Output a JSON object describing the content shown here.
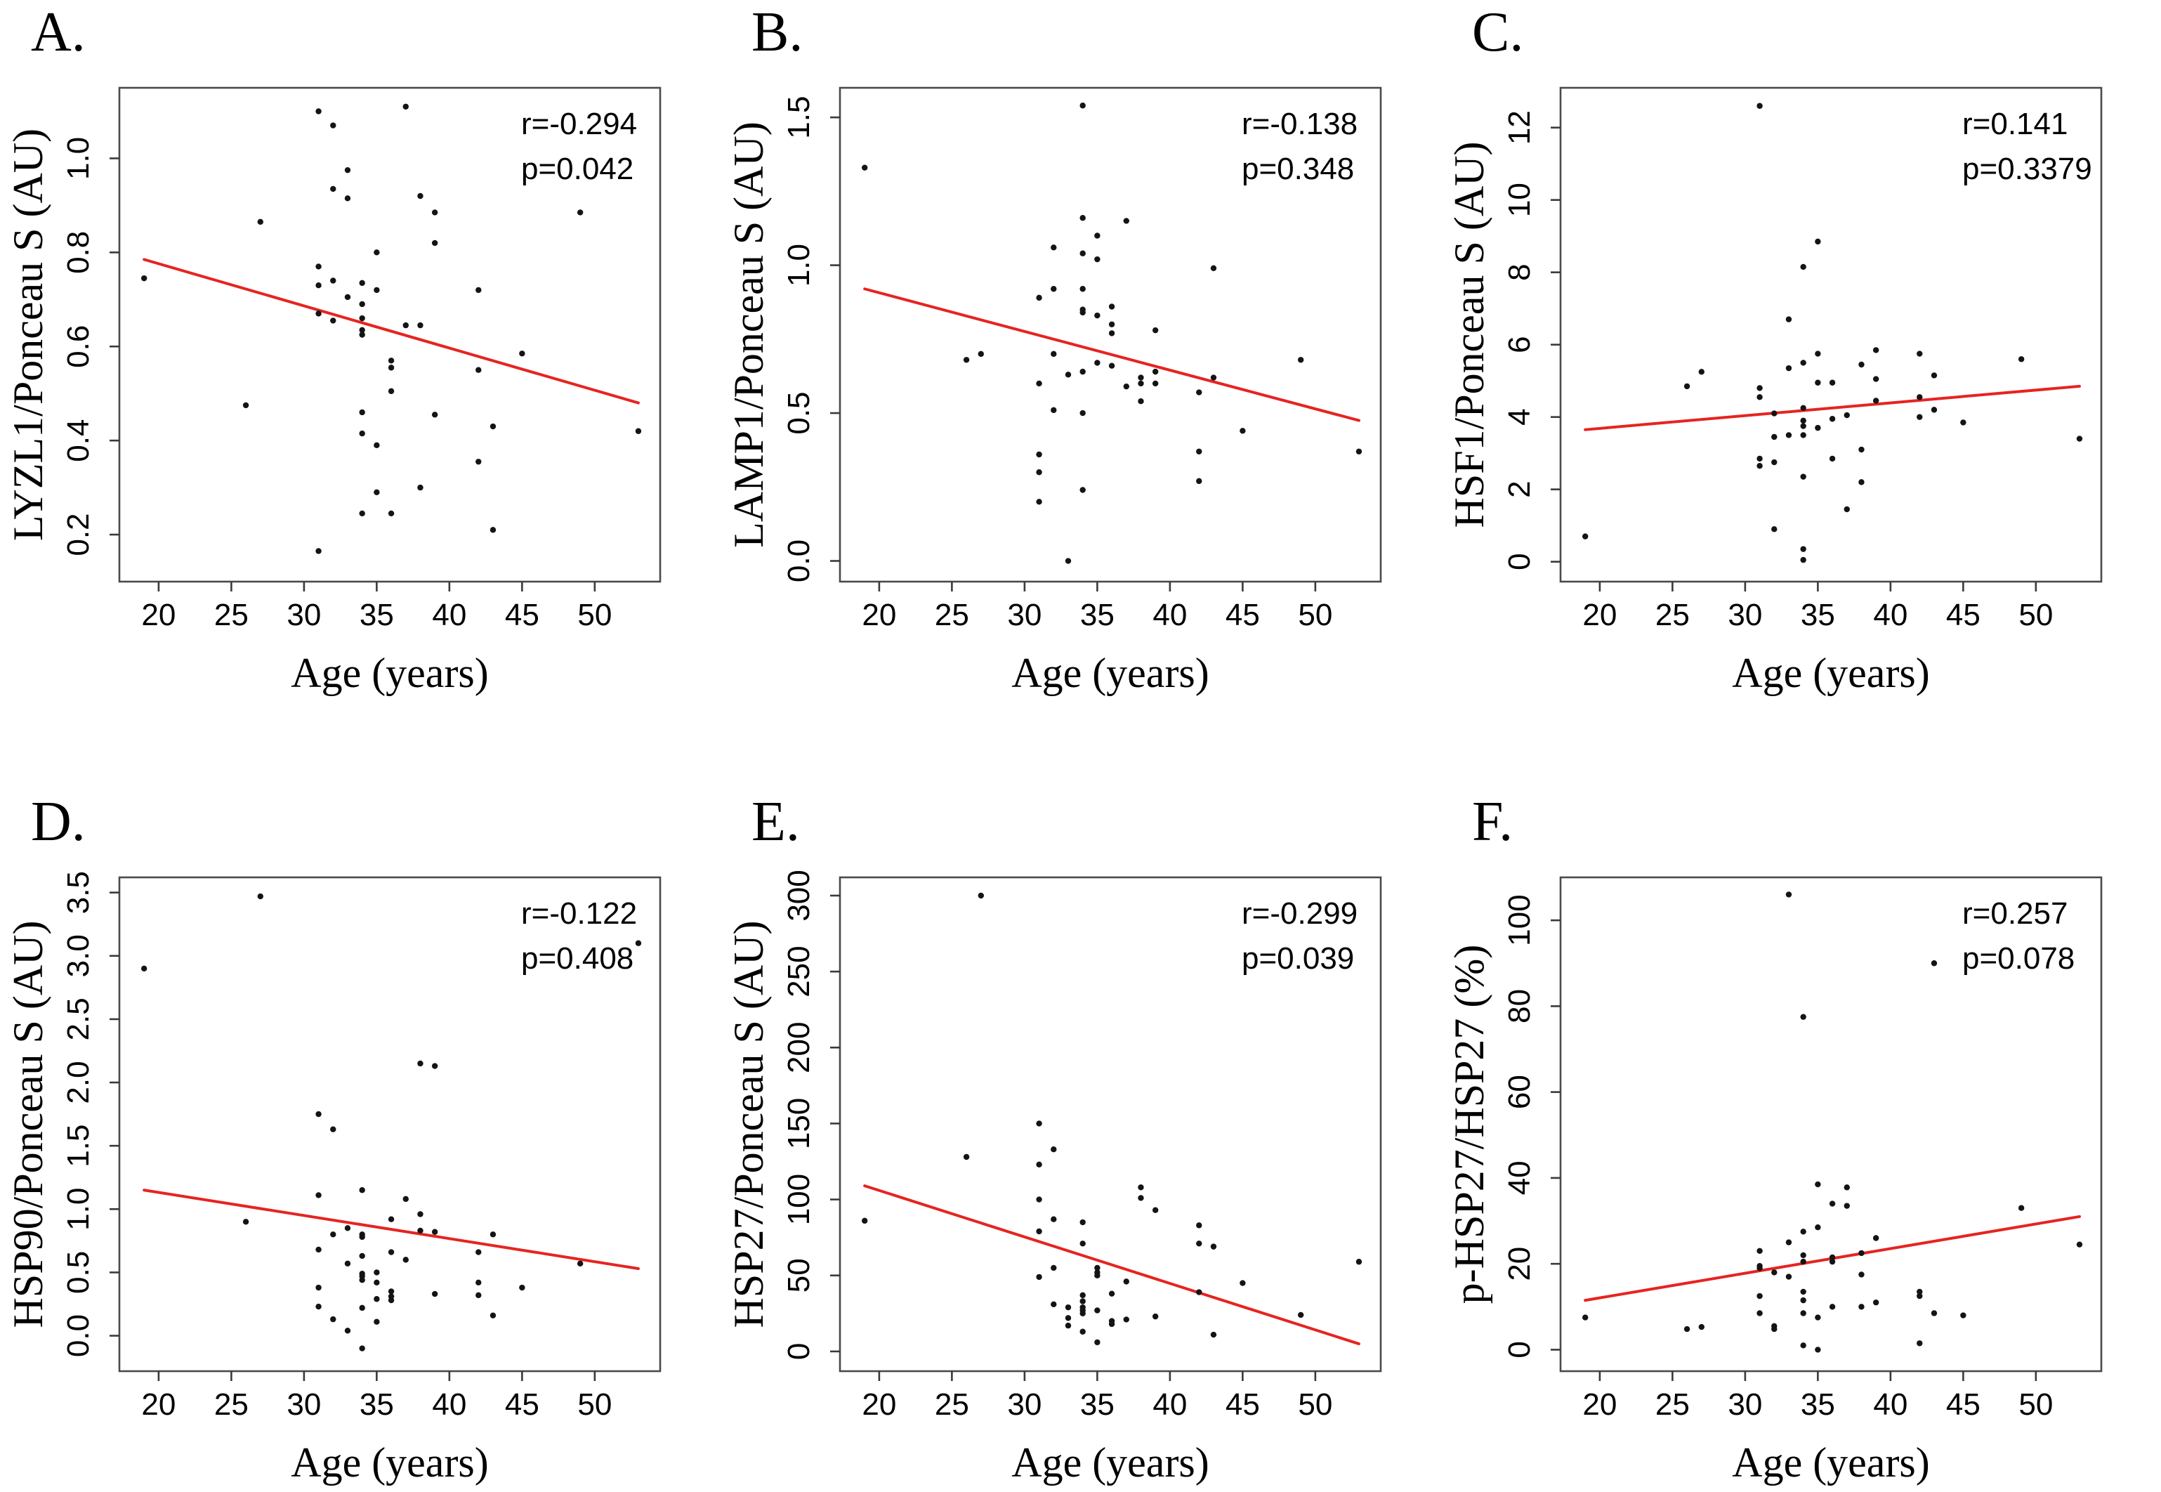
{
  "figure": {
    "background": "#ffffff",
    "point_color": "#141414",
    "trend_color": "#e62420",
    "frame_color": "#4a4a4a",
    "tick_color": "#3a3a3a"
  },
  "chart_data": [
    {
      "type": "scatter",
      "panel_label": "A.",
      "xlabel": "Age (years)",
      "ylabel": "LYZL1/Ponceau S (AU)",
      "annotation_r": "r=-0.294",
      "annotation_p": "p=0.042",
      "xlim": [
        17.3,
        54.5
      ],
      "ylim": [
        0.1,
        1.15
      ],
      "x_ticks": [
        20,
        25,
        30,
        35,
        40,
        45,
        50
      ],
      "x_tick_labels": [
        "20",
        "25",
        "30",
        "35",
        "40",
        "45",
        "50"
      ],
      "y_ticks": [
        0.2,
        0.4,
        0.6,
        0.8,
        1.0
      ],
      "y_tick_labels": [
        "0.2",
        "0.4",
        "0.6",
        "0.8",
        "1.0"
      ],
      "trend": {
        "x1": 19,
        "y1": 0.785,
        "x2": 53,
        "y2": 0.48
      },
      "points": [
        [
          19,
          0.745
        ],
        [
          26,
          0.475
        ],
        [
          27,
          0.865
        ],
        [
          31,
          1.1
        ],
        [
          31,
          0.77
        ],
        [
          31,
          0.73
        ],
        [
          31,
          0.67
        ],
        [
          31,
          0.165
        ],
        [
          32,
          1.07
        ],
        [
          32,
          0.935
        ],
        [
          32,
          0.74
        ],
        [
          32,
          0.655
        ],
        [
          33,
          0.975
        ],
        [
          33,
          0.915
        ],
        [
          33,
          0.705
        ],
        [
          34,
          0.735
        ],
        [
          34,
          0.69
        ],
        [
          34,
          0.66
        ],
        [
          34,
          0.635
        ],
        [
          34,
          0.625
        ],
        [
          34,
          0.46
        ],
        [
          34,
          0.415
        ],
        [
          34,
          0.245
        ],
        [
          35,
          0.8
        ],
        [
          35,
          0.72
        ],
        [
          35,
          0.39
        ],
        [
          35,
          0.29
        ],
        [
          36,
          0.57
        ],
        [
          36,
          0.555
        ],
        [
          36,
          0.505
        ],
        [
          36,
          0.245
        ],
        [
          37,
          1.11
        ],
        [
          37,
          0.645
        ],
        [
          38,
          0.92
        ],
        [
          38,
          0.645
        ],
        [
          38,
          0.3
        ],
        [
          39,
          0.885
        ],
        [
          39,
          0.82
        ],
        [
          39,
          0.455
        ],
        [
          42,
          0.72
        ],
        [
          42,
          0.55
        ],
        [
          42,
          0.355
        ],
        [
          43,
          0.43
        ],
        [
          43,
          0.21
        ],
        [
          45,
          0.585
        ],
        [
          49,
          0.885
        ],
        [
          53,
          0.42
        ]
      ]
    },
    {
      "type": "scatter",
      "panel_label": "B.",
      "xlabel": "Age (years)",
      "ylabel": "LAMP1/Ponceau S (AU)",
      "annotation_r": "r=-0.138",
      "annotation_p": "p=0.348",
      "xlim": [
        17.3,
        54.5
      ],
      "ylim": [
        -0.07,
        1.6
      ],
      "x_ticks": [
        20,
        25,
        30,
        35,
        40,
        45,
        50
      ],
      "x_tick_labels": [
        "20",
        "25",
        "30",
        "35",
        "40",
        "45",
        "50"
      ],
      "y_ticks": [
        0.0,
        0.5,
        1.0,
        1.5
      ],
      "y_tick_labels": [
        "0.0",
        "0.5",
        "1.0",
        "1.5"
      ],
      "trend": {
        "x1": 19,
        "y1": 0.92,
        "x2": 53,
        "y2": 0.475
      },
      "points": [
        [
          19,
          1.33
        ],
        [
          26,
          0.68
        ],
        [
          27,
          0.7
        ],
        [
          31,
          0.89
        ],
        [
          31,
          0.6
        ],
        [
          31,
          0.36
        ],
        [
          31,
          0.3
        ],
        [
          31,
          0.2
        ],
        [
          32,
          1.06
        ],
        [
          32,
          0.92
        ],
        [
          32,
          0.7
        ],
        [
          32,
          0.51
        ],
        [
          33,
          0.63
        ],
        [
          33,
          0.0
        ],
        [
          34,
          1.54
        ],
        [
          34,
          1.16
        ],
        [
          34,
          1.04
        ],
        [
          34,
          0.92
        ],
        [
          34,
          0.85
        ],
        [
          34,
          0.84
        ],
        [
          34,
          0.64
        ],
        [
          34,
          0.5
        ],
        [
          34,
          0.24
        ],
        [
          35,
          1.1
        ],
        [
          35,
          1.02
        ],
        [
          35,
          0.83
        ],
        [
          35,
          0.67
        ],
        [
          36,
          0.86
        ],
        [
          36,
          0.8
        ],
        [
          36,
          0.77
        ],
        [
          36,
          0.66
        ],
        [
          37,
          1.15
        ],
        [
          37,
          0.59
        ],
        [
          38,
          0.62
        ],
        [
          38,
          0.6
        ],
        [
          38,
          0.54
        ],
        [
          39,
          0.78
        ],
        [
          39,
          0.64
        ],
        [
          39,
          0.6
        ],
        [
          42,
          0.57
        ],
        [
          42,
          0.37
        ],
        [
          42,
          0.27
        ],
        [
          43,
          0.99
        ],
        [
          43,
          0.62
        ],
        [
          45,
          0.44
        ],
        [
          49,
          0.68
        ],
        [
          53,
          0.37
        ]
      ]
    },
    {
      "type": "scatter",
      "panel_label": "C.",
      "xlabel": "Age (years)",
      "ylabel": "HSF1/Ponceau S (AU)",
      "annotation_r": "r=0.141",
      "annotation_p": "p=0.3379",
      "xlim": [
        17.3,
        54.5
      ],
      "ylim": [
        -0.55,
        13.1
      ],
      "x_ticks": [
        20,
        25,
        30,
        35,
        40,
        45,
        50
      ],
      "x_tick_labels": [
        "20",
        "25",
        "30",
        "35",
        "40",
        "45",
        "50"
      ],
      "y_ticks": [
        0,
        2,
        4,
        6,
        8,
        10,
        12
      ],
      "y_tick_labels": [
        "0",
        "2",
        "4",
        "6",
        "8",
        "10",
        "12"
      ],
      "trend": {
        "x1": 19,
        "y1": 3.65,
        "x2": 53,
        "y2": 4.85
      },
      "points": [
        [
          19,
          0.7
        ],
        [
          26,
          4.85
        ],
        [
          27,
          5.25
        ],
        [
          31,
          12.6
        ],
        [
          31,
          4.8
        ],
        [
          31,
          4.55
        ],
        [
          31,
          2.85
        ],
        [
          31,
          2.65
        ],
        [
          32,
          4.1
        ],
        [
          32,
          3.45
        ],
        [
          32,
          2.75
        ],
        [
          32,
          0.9
        ],
        [
          33,
          6.7
        ],
        [
          33,
          5.35
        ],
        [
          33,
          3.5
        ],
        [
          34,
          8.15
        ],
        [
          34,
          5.5
        ],
        [
          34,
          4.25
        ],
        [
          34,
          3.9
        ],
        [
          34,
          3.75
        ],
        [
          34,
          3.5
        ],
        [
          34,
          2.35
        ],
        [
          34,
          0.35
        ],
        [
          34,
          0.05
        ],
        [
          35,
          8.85
        ],
        [
          35,
          5.75
        ],
        [
          35,
          4.95
        ],
        [
          35,
          3.7
        ],
        [
          36,
          4.95
        ],
        [
          36,
          3.95
        ],
        [
          36,
          2.85
        ],
        [
          37,
          4.05
        ],
        [
          37,
          1.45
        ],
        [
          38,
          5.45
        ],
        [
          38,
          3.1
        ],
        [
          38,
          2.2
        ],
        [
          39,
          5.85
        ],
        [
          39,
          5.05
        ],
        [
          39,
          4.45
        ],
        [
          42,
          5.75
        ],
        [
          42,
          4.55
        ],
        [
          42,
          4.0
        ],
        [
          43,
          5.15
        ],
        [
          43,
          4.2
        ],
        [
          45,
          3.85
        ],
        [
          49,
          5.6
        ],
        [
          53,
          3.4
        ]
      ]
    },
    {
      "type": "scatter",
      "panel_label": "D.",
      "xlabel": "Age (years)",
      "ylabel": "HSP90/Ponceau S (AU)",
      "annotation_r": "r=-0.122",
      "annotation_p": "p=0.408",
      "xlim": [
        17.3,
        54.5
      ],
      "ylim": [
        -0.28,
        3.62
      ],
      "x_ticks": [
        20,
        25,
        30,
        35,
        40,
        45,
        50
      ],
      "x_tick_labels": [
        "20",
        "25",
        "30",
        "35",
        "40",
        "45",
        "50"
      ],
      "y_ticks": [
        0.0,
        0.5,
        1.0,
        1.5,
        2.0,
        2.5,
        3.0,
        3.5
      ],
      "y_tick_labels": [
        "0.0",
        "0.5",
        "1.0",
        "1.5",
        "2.0",
        "2.5",
        "3.0",
        "3.5"
      ],
      "trend": {
        "x1": 19,
        "y1": 1.15,
        "x2": 53,
        "y2": 0.53
      },
      "points": [
        [
          19,
          2.9
        ],
        [
          26,
          0.9
        ],
        [
          27,
          3.47
        ],
        [
          31,
          1.75
        ],
        [
          31,
          1.11
        ],
        [
          31,
          0.68
        ],
        [
          31,
          0.38
        ],
        [
          31,
          0.23
        ],
        [
          32,
          1.63
        ],
        [
          32,
          0.8
        ],
        [
          32,
          0.13
        ],
        [
          33,
          0.85
        ],
        [
          33,
          0.57
        ],
        [
          33,
          0.04
        ],
        [
          34,
          1.15
        ],
        [
          34,
          0.8
        ],
        [
          34,
          0.78
        ],
        [
          34,
          0.63
        ],
        [
          34,
          0.49
        ],
        [
          34,
          0.47
        ],
        [
          34,
          0.44
        ],
        [
          34,
          0.22
        ],
        [
          34,
          -0.1
        ],
        [
          35,
          0.5
        ],
        [
          35,
          0.42
        ],
        [
          35,
          0.29
        ],
        [
          35,
          0.11
        ],
        [
          36,
          0.92
        ],
        [
          36,
          0.66
        ],
        [
          36,
          0.35
        ],
        [
          36,
          0.31
        ],
        [
          36,
          0.28
        ],
        [
          37,
          1.08
        ],
        [
          37,
          0.6
        ],
        [
          38,
          2.15
        ],
        [
          38,
          0.96
        ],
        [
          38,
          0.83
        ],
        [
          39,
          2.13
        ],
        [
          39,
          0.82
        ],
        [
          39,
          0.33
        ],
        [
          42,
          0.66
        ],
        [
          42,
          0.42
        ],
        [
          42,
          0.32
        ],
        [
          43,
          0.8
        ],
        [
          43,
          0.16
        ],
        [
          45,
          0.38
        ],
        [
          49,
          0.57
        ],
        [
          53,
          3.1
        ]
      ]
    },
    {
      "type": "scatter",
      "panel_label": "E.",
      "xlabel": "Age (years)",
      "ylabel": "HSP27/Ponceau S (AU)",
      "annotation_r": "r=-0.299",
      "annotation_p": "p=0.039",
      "xlim": [
        17.3,
        54.5
      ],
      "ylim": [
        -13,
        312
      ],
      "x_ticks": [
        20,
        25,
        30,
        35,
        40,
        45,
        50
      ],
      "x_tick_labels": [
        "20",
        "25",
        "30",
        "35",
        "40",
        "45",
        "50"
      ],
      "y_ticks": [
        0,
        50,
        100,
        150,
        200,
        250,
        300
      ],
      "y_tick_labels": [
        "0",
        "50",
        "100",
        "150",
        "200",
        "250",
        "300"
      ],
      "trend": {
        "x1": 19,
        "y1": 109,
        "x2": 53,
        "y2": 5
      },
      "points": [
        [
          19,
          86
        ],
        [
          26,
          128
        ],
        [
          27,
          300
        ],
        [
          31,
          150
        ],
        [
          31,
          123
        ],
        [
          31,
          100
        ],
        [
          31,
          79
        ],
        [
          31,
          49
        ],
        [
          32,
          133
        ],
        [
          32,
          87
        ],
        [
          32,
          55
        ],
        [
          32,
          31
        ],
        [
          33,
          29
        ],
        [
          33,
          22
        ],
        [
          33,
          17
        ],
        [
          34,
          85
        ],
        [
          34,
          71
        ],
        [
          34,
          37
        ],
        [
          34,
          33
        ],
        [
          34,
          29
        ],
        [
          34,
          27
        ],
        [
          34,
          25
        ],
        [
          34,
          13
        ],
        [
          35,
          55
        ],
        [
          35,
          52
        ],
        [
          35,
          50
        ],
        [
          35,
          27
        ],
        [
          35,
          6
        ],
        [
          36,
          38
        ],
        [
          36,
          20
        ],
        [
          36,
          18
        ],
        [
          37,
          46
        ],
        [
          37,
          21
        ],
        [
          38,
          108
        ],
        [
          38,
          101
        ],
        [
          39,
          93
        ],
        [
          39,
          23
        ],
        [
          42,
          83
        ],
        [
          42,
          71
        ],
        [
          42,
          39
        ],
        [
          43,
          69
        ],
        [
          43,
          11
        ],
        [
          45,
          45
        ],
        [
          49,
          24
        ],
        [
          53,
          59
        ]
      ]
    },
    {
      "type": "scatter",
      "panel_label": "F.",
      "xlabel": "Age (years)",
      "ylabel": "p-HSP27/HSP27 (%)",
      "annotation_r": "r=0.257",
      "annotation_p": "p=0.078",
      "xlim": [
        17.3,
        54.5
      ],
      "ylim": [
        -5,
        110
      ],
      "x_ticks": [
        20,
        25,
        30,
        35,
        40,
        45,
        50
      ],
      "x_tick_labels": [
        "20",
        "25",
        "30",
        "35",
        "40",
        "45",
        "50"
      ],
      "y_ticks": [
        0,
        20,
        40,
        60,
        80,
        100
      ],
      "y_tick_labels": [
        "0",
        "20",
        "40",
        "60",
        "80",
        "100"
      ],
      "trend": {
        "x1": 19,
        "y1": 11.5,
        "x2": 53,
        "y2": 31
      },
      "points": [
        [
          19,
          7.5
        ],
        [
          26,
          4.8
        ],
        [
          27,
          5.3
        ],
        [
          31,
          23
        ],
        [
          31,
          19.5
        ],
        [
          31,
          19
        ],
        [
          31,
          12.5
        ],
        [
          31,
          8.5
        ],
        [
          32,
          18
        ],
        [
          32,
          5.5
        ],
        [
          32,
          4.8
        ],
        [
          33,
          106
        ],
        [
          33,
          25
        ],
        [
          33,
          17
        ],
        [
          34,
          77.5
        ],
        [
          34,
          27.5
        ],
        [
          34,
          22
        ],
        [
          34,
          20.5
        ],
        [
          34,
          13.5
        ],
        [
          34,
          11.5
        ],
        [
          34,
          8.5
        ],
        [
          34,
          1
        ],
        [
          35,
          38.5
        ],
        [
          35,
          28.5
        ],
        [
          35,
          7.5
        ],
        [
          35,
          0
        ],
        [
          36,
          34
        ],
        [
          36,
          21.5
        ],
        [
          36,
          20.5
        ],
        [
          36,
          10
        ],
        [
          37,
          37.8
        ],
        [
          37,
          33.5
        ],
        [
          38,
          22.5
        ],
        [
          38,
          17.5
        ],
        [
          38,
          10
        ],
        [
          39,
          26
        ],
        [
          39,
          11
        ],
        [
          42,
          13.5
        ],
        [
          42,
          12.5
        ],
        [
          42,
          1.5
        ],
        [
          43,
          90
        ],
        [
          43,
          8.5
        ],
        [
          45,
          8
        ],
        [
          49,
          33
        ],
        [
          53,
          24.5
        ]
      ]
    }
  ]
}
